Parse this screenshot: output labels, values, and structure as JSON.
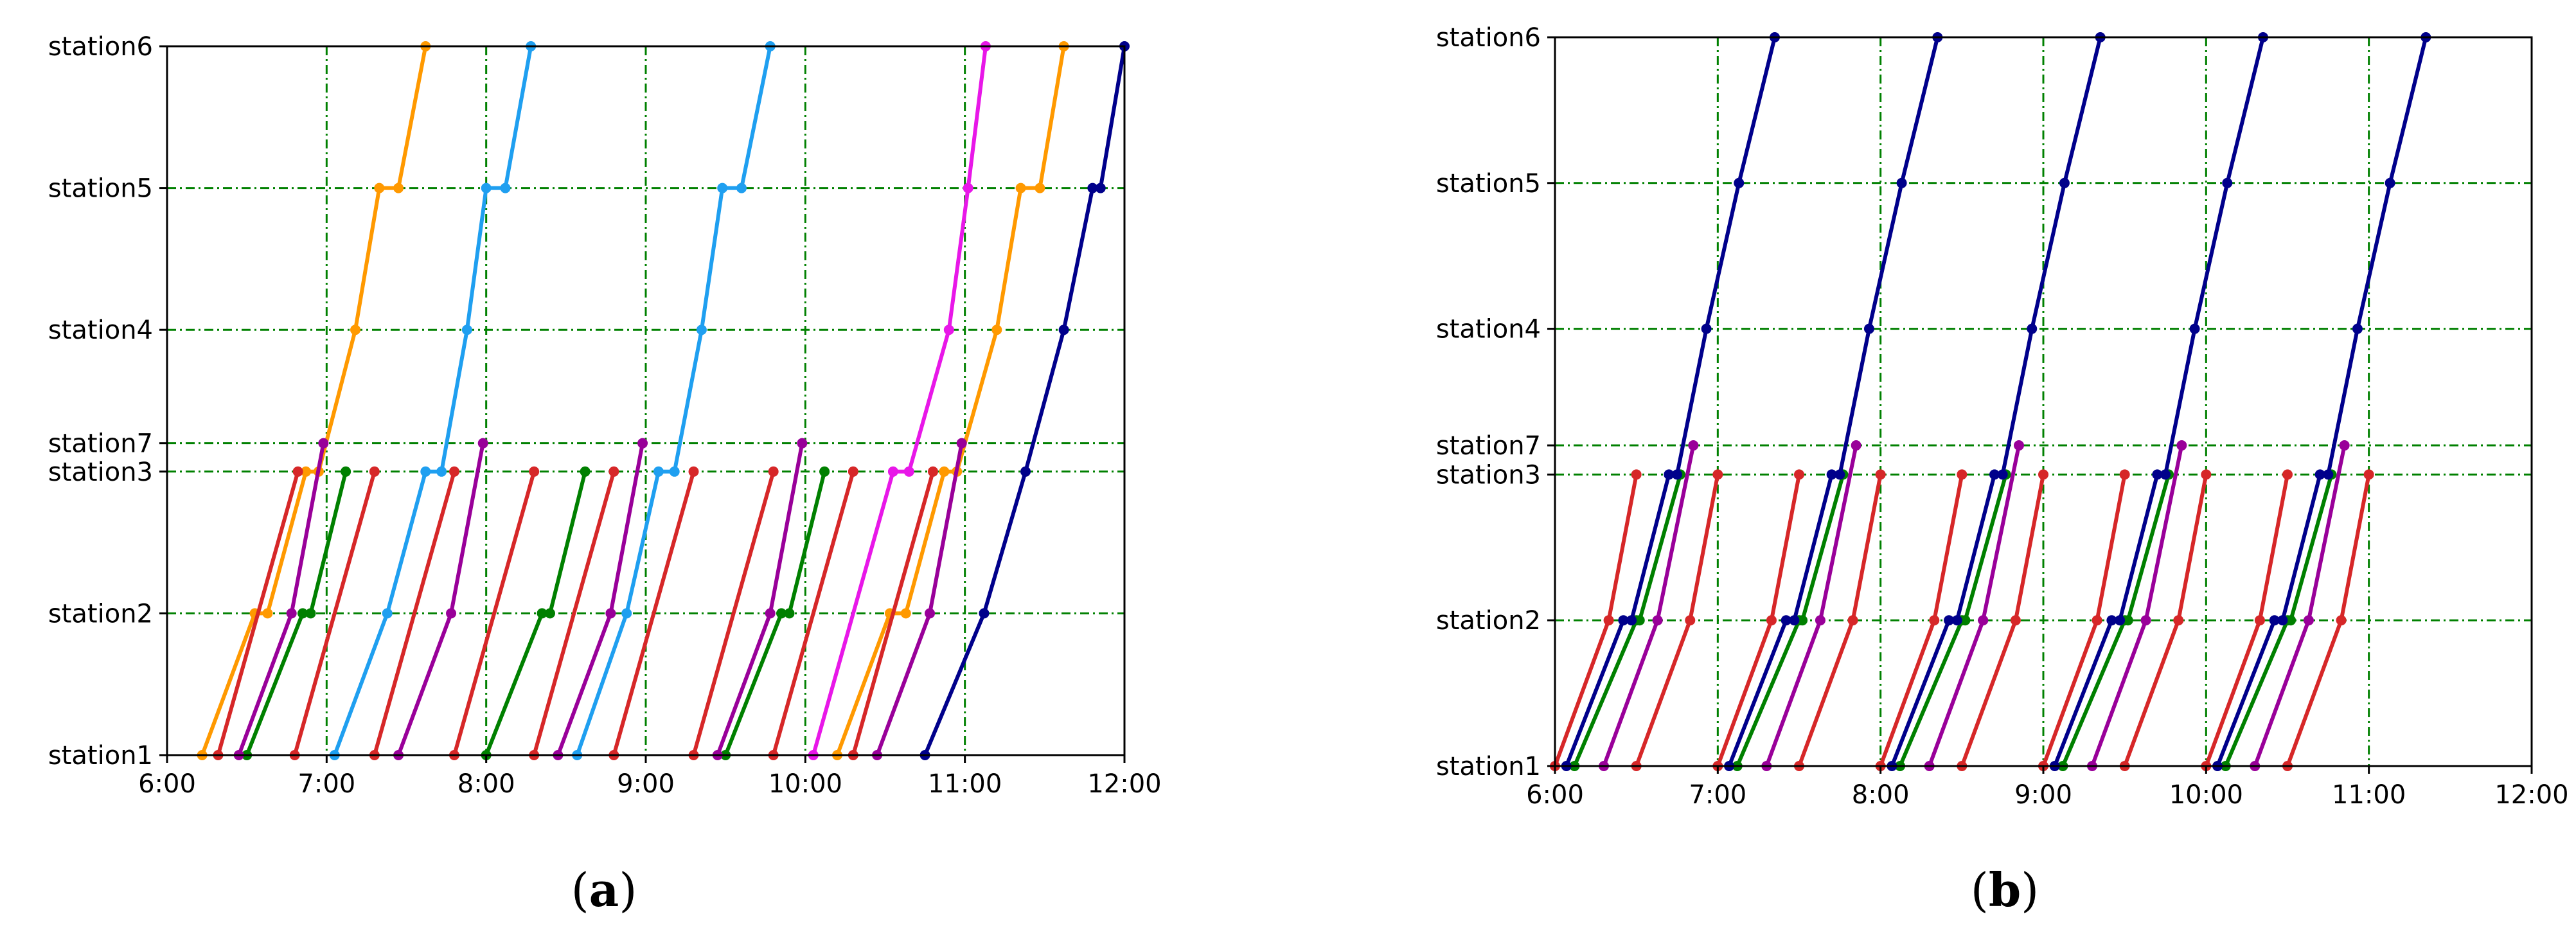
{
  "colors": {
    "grid": "#008000",
    "orange": "#ff9900",
    "red": "#d62728",
    "green": "#008000",
    "purple": "#990099",
    "lightblue": "#1f9ff0",
    "magenta": "#e817e8",
    "navy": "#00008b"
  },
  "chart_data": [
    {
      "type": "line",
      "caption": {
        "open": "(",
        "letter": "a",
        "close": ")"
      },
      "title": "",
      "xlabel": "",
      "ylabel": "",
      "x_ticks": [
        "6:00",
        "7:00",
        "8:00",
        "9:00",
        "10:00",
        "11:00",
        "12:00"
      ],
      "xlim": [
        6,
        12
      ],
      "stations": [
        {
          "name": "station1",
          "level": 0
        },
        {
          "name": "station2",
          "level": 1
        },
        {
          "name": "station3",
          "level": 2
        },
        {
          "name": "station7",
          "level": 2.2
        },
        {
          "name": "station4",
          "level": 3
        },
        {
          "name": "station5",
          "level": 4
        },
        {
          "name": "station6",
          "level": 5
        }
      ],
      "grid": true,
      "series": [
        {
          "color": "orange",
          "points": [
            [
              6.22,
              0
            ],
            [
              6.55,
              1
            ],
            [
              6.63,
              1
            ],
            [
              6.87,
              2
            ],
            [
              6.95,
              2
            ],
            [
              7.18,
              3
            ],
            [
              7.33,
              4
            ],
            [
              7.45,
              4
            ],
            [
              7.62,
              5
            ]
          ]
        },
        {
          "color": "orange",
          "points": [
            [
              10.2,
              0
            ],
            [
              10.53,
              1
            ],
            [
              10.63,
              1
            ],
            [
              10.87,
              2
            ],
            [
              10.95,
              2
            ],
            [
              11.2,
              3
            ],
            [
              11.35,
              4
            ],
            [
              11.47,
              4
            ],
            [
              11.62,
              5
            ]
          ]
        },
        {
          "color": "red",
          "points": [
            [
              6.32,
              0
            ],
            [
              6.82,
              2
            ]
          ]
        },
        {
          "color": "red",
          "points": [
            [
              6.8,
              0
            ],
            [
              7.3,
              2
            ]
          ]
        },
        {
          "color": "red",
          "points": [
            [
              7.3,
              0
            ],
            [
              7.8,
              2
            ]
          ]
        },
        {
          "color": "red",
          "points": [
            [
              7.8,
              0
            ],
            [
              8.3,
              2
            ]
          ]
        },
        {
          "color": "red",
          "points": [
            [
              8.3,
              0
            ],
            [
              8.8,
              2
            ]
          ]
        },
        {
          "color": "red",
          "points": [
            [
              8.8,
              0
            ],
            [
              9.3,
              2
            ]
          ]
        },
        {
          "color": "red",
          "points": [
            [
              9.3,
              0
            ],
            [
              9.8,
              2
            ]
          ]
        },
        {
          "color": "red",
          "points": [
            [
              9.8,
              0
            ],
            [
              10.3,
              2
            ]
          ]
        },
        {
          "color": "red",
          "points": [
            [
              10.3,
              0
            ],
            [
              10.8,
              2
            ]
          ]
        },
        {
          "color": "green",
          "points": [
            [
              6.5,
              0
            ],
            [
              6.85,
              1
            ],
            [
              6.9,
              1
            ],
            [
              7.12,
              2
            ]
          ]
        },
        {
          "color": "green",
          "points": [
            [
              8.0,
              0
            ],
            [
              8.35,
              1
            ],
            [
              8.4,
              1
            ],
            [
              8.62,
              2
            ]
          ]
        },
        {
          "color": "green",
          "points": [
            [
              9.5,
              0
            ],
            [
              9.85,
              1
            ],
            [
              9.9,
              1
            ],
            [
              10.12,
              2
            ]
          ]
        },
        {
          "color": "purple",
          "points": [
            [
              6.45,
              0
            ],
            [
              6.78,
              1
            ],
            [
              6.98,
              2.2
            ]
          ]
        },
        {
          "color": "purple",
          "points": [
            [
              7.45,
              0
            ],
            [
              7.78,
              1
            ],
            [
              7.98,
              2.2
            ]
          ]
        },
        {
          "color": "purple",
          "points": [
            [
              8.45,
              0
            ],
            [
              8.78,
              1
            ],
            [
              8.98,
              2.2
            ]
          ]
        },
        {
          "color": "purple",
          "points": [
            [
              9.45,
              0
            ],
            [
              9.78,
              1
            ],
            [
              9.98,
              2.2
            ]
          ]
        },
        {
          "color": "purple",
          "points": [
            [
              10.45,
              0
            ],
            [
              10.78,
              1
            ],
            [
              10.98,
              2.2
            ]
          ]
        },
        {
          "color": "lightblue",
          "points": [
            [
              7.05,
              0
            ],
            [
              7.38,
              1
            ],
            [
              7.62,
              2
            ],
            [
              7.72,
              2
            ],
            [
              7.88,
              3
            ],
            [
              8.0,
              4
            ],
            [
              8.12,
              4
            ],
            [
              8.28,
              5
            ]
          ]
        },
        {
          "color": "lightblue",
          "points": [
            [
              8.57,
              0
            ],
            [
              8.88,
              1
            ],
            [
              9.08,
              2
            ],
            [
              9.18,
              2
            ],
            [
              9.35,
              3
            ],
            [
              9.48,
              4
            ],
            [
              9.6,
              4
            ],
            [
              9.78,
              5
            ]
          ]
        },
        {
          "color": "magenta",
          "points": [
            [
              10.05,
              0
            ],
            [
              10.55,
              2
            ],
            [
              10.65,
              2
            ],
            [
              10.9,
              3
            ],
            [
              11.02,
              4
            ],
            [
              11.13,
              5
            ]
          ]
        },
        {
          "color": "navy",
          "points": [
            [
              10.75,
              0
            ],
            [
              11.12,
              1
            ],
            [
              11.38,
              2
            ],
            [
              11.62,
              3
            ],
            [
              11.8,
              4
            ],
            [
              11.85,
              4
            ],
            [
              12.0,
              5
            ]
          ]
        }
      ]
    },
    {
      "type": "line",
      "caption": {
        "open": "(",
        "letter": "b",
        "close": ")"
      },
      "title": "",
      "xlabel": "",
      "ylabel": "",
      "x_ticks": [
        "6:00",
        "7:00",
        "8:00",
        "9:00",
        "10:00",
        "11:00",
        "12:00"
      ],
      "xlim": [
        6,
        12
      ],
      "stations": [
        {
          "name": "station1",
          "level": 0
        },
        {
          "name": "station2",
          "level": 1
        },
        {
          "name": "station3",
          "level": 2
        },
        {
          "name": "station7",
          "level": 2.2
        },
        {
          "name": "station4",
          "level": 3
        },
        {
          "name": "station5",
          "level": 4
        },
        {
          "name": "station6",
          "level": 5
        }
      ],
      "grid": true,
      "series": [
        {
          "color": "red",
          "points": [
            [
              6.0,
              0
            ],
            [
              6.33,
              1
            ],
            [
              6.5,
              2
            ]
          ]
        },
        {
          "color": "red",
          "points": [
            [
              6.5,
              0
            ],
            [
              6.83,
              1
            ],
            [
              7.0,
              2
            ]
          ]
        },
        {
          "color": "red",
          "points": [
            [
              7.0,
              0
            ],
            [
              7.33,
              1
            ],
            [
              7.5,
              2
            ]
          ]
        },
        {
          "color": "red",
          "points": [
            [
              7.5,
              0
            ],
            [
              7.83,
              1
            ],
            [
              8.0,
              2
            ]
          ]
        },
        {
          "color": "red",
          "points": [
            [
              8.0,
              0
            ],
            [
              8.33,
              1
            ],
            [
              8.5,
              2
            ]
          ]
        },
        {
          "color": "red",
          "points": [
            [
              8.5,
              0
            ],
            [
              8.83,
              1
            ],
            [
              9.0,
              2
            ]
          ]
        },
        {
          "color": "red",
          "points": [
            [
              9.0,
              0
            ],
            [
              9.33,
              1
            ],
            [
              9.5,
              2
            ]
          ]
        },
        {
          "color": "red",
          "points": [
            [
              9.5,
              0
            ],
            [
              9.83,
              1
            ],
            [
              10.0,
              2
            ]
          ]
        },
        {
          "color": "red",
          "points": [
            [
              10.0,
              0
            ],
            [
              10.33,
              1
            ],
            [
              10.5,
              2
            ]
          ]
        },
        {
          "color": "red",
          "points": [
            [
              10.5,
              0
            ],
            [
              10.83,
              1
            ],
            [
              11.0,
              2
            ]
          ]
        },
        {
          "color": "green",
          "points": [
            [
              6.12,
              0
            ],
            [
              6.5,
              1
            ],
            [
              6.52,
              1
            ],
            [
              6.77,
              2
            ]
          ]
        },
        {
          "color": "green",
          "points": [
            [
              7.12,
              0
            ],
            [
              7.5,
              1
            ],
            [
              7.52,
              1
            ],
            [
              7.77,
              2
            ]
          ]
        },
        {
          "color": "green",
          "points": [
            [
              8.12,
              0
            ],
            [
              8.5,
              1
            ],
            [
              8.52,
              1
            ],
            [
              8.77,
              2
            ]
          ]
        },
        {
          "color": "green",
          "points": [
            [
              9.12,
              0
            ],
            [
              9.5,
              1
            ],
            [
              9.52,
              1
            ],
            [
              9.77,
              2
            ]
          ]
        },
        {
          "color": "green",
          "points": [
            [
              10.12,
              0
            ],
            [
              10.5,
              1
            ],
            [
              10.52,
              1
            ],
            [
              10.77,
              2
            ]
          ]
        },
        {
          "color": "purple",
          "points": [
            [
              6.3,
              0
            ],
            [
              6.63,
              1
            ],
            [
              6.85,
              2.2
            ]
          ]
        },
        {
          "color": "purple",
          "points": [
            [
              7.3,
              0
            ],
            [
              7.63,
              1
            ],
            [
              7.85,
              2.2
            ]
          ]
        },
        {
          "color": "purple",
          "points": [
            [
              8.3,
              0
            ],
            [
              8.63,
              1
            ],
            [
              8.85,
              2.2
            ]
          ]
        },
        {
          "color": "purple",
          "points": [
            [
              9.3,
              0
            ],
            [
              9.63,
              1
            ],
            [
              9.85,
              2.2
            ]
          ]
        },
        {
          "color": "purple",
          "points": [
            [
              10.3,
              0
            ],
            [
              10.63,
              1
            ],
            [
              10.85,
              2.2
            ]
          ]
        },
        {
          "color": "navy",
          "points": [
            [
              6.07,
              0
            ],
            [
              6.42,
              1
            ],
            [
              6.47,
              1
            ],
            [
              6.7,
              2
            ],
            [
              6.75,
              2
            ],
            [
              6.93,
              3
            ],
            [
              7.13,
              4
            ],
            [
              7.35,
              5
            ]
          ]
        },
        {
          "color": "navy",
          "points": [
            [
              7.07,
              0
            ],
            [
              7.42,
              1
            ],
            [
              7.47,
              1
            ],
            [
              7.7,
              2
            ],
            [
              7.75,
              2
            ],
            [
              7.93,
              3
            ],
            [
              8.13,
              4
            ],
            [
              8.35,
              5
            ]
          ]
        },
        {
          "color": "navy",
          "points": [
            [
              8.07,
              0
            ],
            [
              8.42,
              1
            ],
            [
              8.47,
              1
            ],
            [
              8.7,
              2
            ],
            [
              8.75,
              2
            ],
            [
              8.93,
              3
            ],
            [
              9.13,
              4
            ],
            [
              9.35,
              5
            ]
          ]
        },
        {
          "color": "navy",
          "points": [
            [
              9.07,
              0
            ],
            [
              9.42,
              1
            ],
            [
              9.47,
              1
            ],
            [
              9.7,
              2
            ],
            [
              9.75,
              2
            ],
            [
              9.93,
              3
            ],
            [
              10.13,
              4
            ],
            [
              10.35,
              5
            ]
          ]
        },
        {
          "color": "navy",
          "points": [
            [
              10.07,
              0
            ],
            [
              10.42,
              1
            ],
            [
              10.47,
              1
            ],
            [
              10.7,
              2
            ],
            [
              10.75,
              2
            ],
            [
              10.93,
              3
            ],
            [
              11.13,
              4
            ],
            [
              11.35,
              5
            ]
          ]
        }
      ]
    }
  ]
}
